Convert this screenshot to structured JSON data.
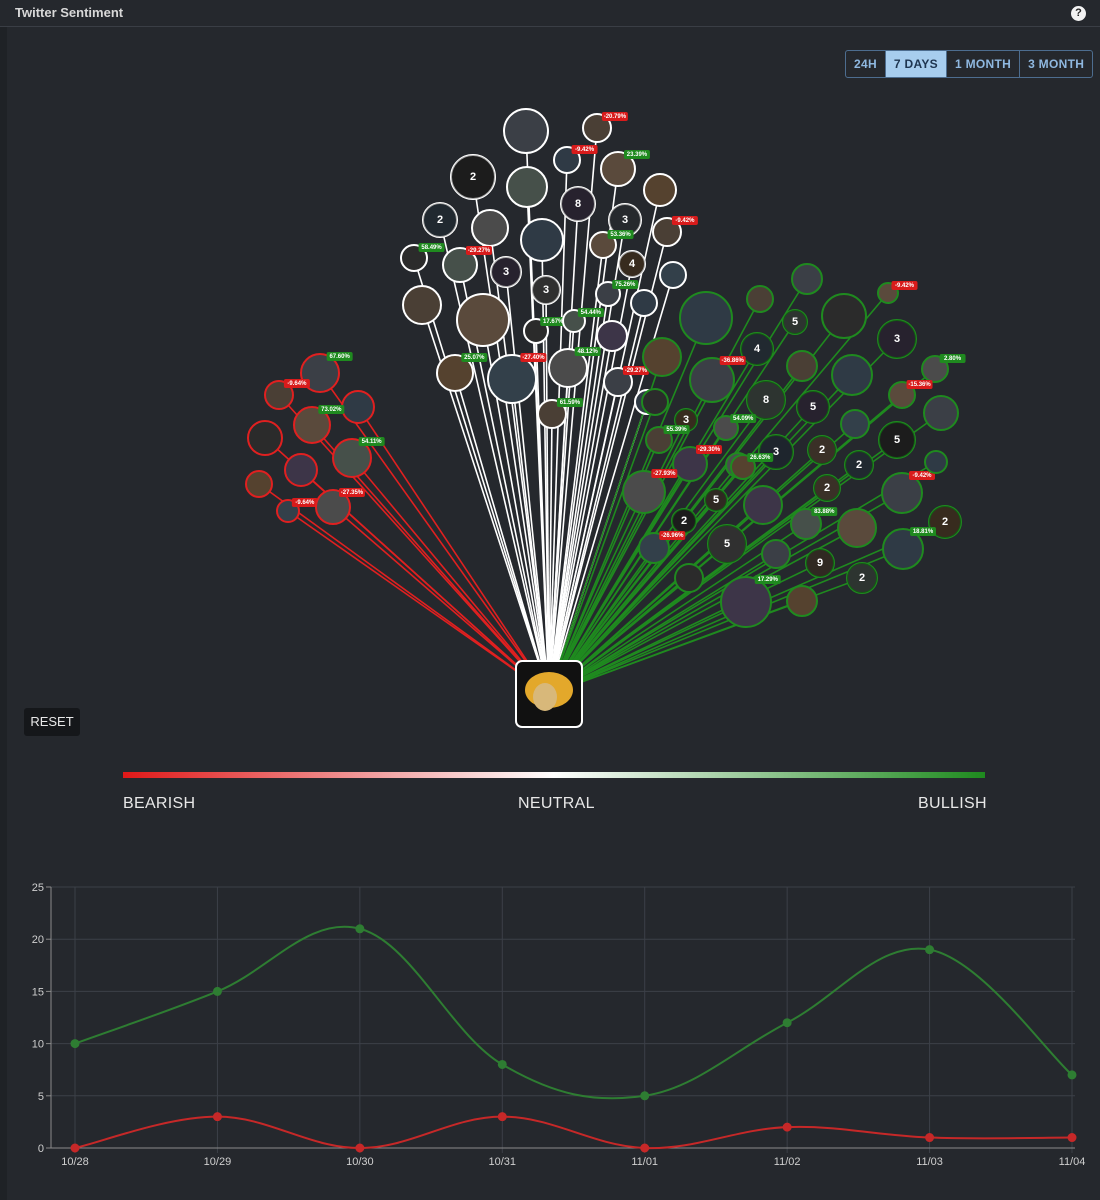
{
  "header": {
    "title": "Twitter Sentiment",
    "help_icon": "?"
  },
  "range_tabs": [
    {
      "label": "24H",
      "active": false
    },
    {
      "label": "7 DAYS",
      "active": true
    },
    {
      "label": "1 MONTH",
      "active": false
    },
    {
      "label": "3 MONTH",
      "active": false
    }
  ],
  "reset_label": "RESET",
  "scale": {
    "bearish": "BEARISH",
    "neutral": "NEUTRAL",
    "bullish": "BULLISH"
  },
  "colors": {
    "bearish": "#e02020",
    "neutral": "#ffffff",
    "bullish": "#1f8a1f",
    "accent": "#a7cdee"
  },
  "network": {
    "center_icon": "user-avatar-icon",
    "bearish_nodes": [
      {
        "badge": "67.60%"
      },
      {
        "badge": "-9.64%"
      },
      {
        "badge": ""
      },
      {
        "badge": "73.02%"
      },
      {
        "badge": ""
      },
      {
        "badge": "54.11%"
      },
      {
        "badge": ""
      },
      {
        "badge": ""
      },
      {
        "badge": "-9.64%"
      },
      {
        "badge": "-27.35%"
      }
    ],
    "neutral_nodes": [
      {
        "count": "",
        "badge": ""
      },
      {
        "count": "",
        "badge": "-20.79%"
      },
      {
        "count": "",
        "badge": "-9.42%"
      },
      {
        "count": "",
        "badge": "23.39%"
      },
      {
        "count": "2",
        "badge": ""
      },
      {
        "count": "",
        "badge": ""
      },
      {
        "count": "8",
        "badge": ""
      },
      {
        "count": "",
        "badge": ""
      },
      {
        "count": "2",
        "badge": ""
      },
      {
        "count": "",
        "badge": ""
      },
      {
        "count": "3",
        "badge": ""
      },
      {
        "count": "",
        "badge": "-9.42%"
      },
      {
        "count": "",
        "badge": ""
      },
      {
        "count": "",
        "badge": "53.36%"
      },
      {
        "count": "",
        "badge": "58.49%"
      },
      {
        "count": "",
        "badge": "-29.27%"
      },
      {
        "count": "3",
        "badge": ""
      },
      {
        "count": "4",
        "badge": ""
      },
      {
        "count": "",
        "badge": ""
      },
      {
        "count": "3",
        "badge": ""
      },
      {
        "count": "",
        "badge": "75.26%"
      },
      {
        "count": "",
        "badge": ""
      },
      {
        "count": "",
        "badge": ""
      },
      {
        "count": "",
        "badge": ""
      },
      {
        "count": "",
        "badge": "17.67%"
      },
      {
        "count": "",
        "badge": "54.44%"
      },
      {
        "count": "",
        "badge": ""
      },
      {
        "count": "",
        "badge": "25.07%"
      },
      {
        "count": "",
        "badge": "-27.40%"
      },
      {
        "count": "",
        "badge": "48.12%"
      },
      {
        "count": "",
        "badge": "-29.27%"
      },
      {
        "count": "",
        "badge": "61.59%"
      },
      {
        "count": "",
        "badge": ""
      }
    ],
    "bullish_nodes": [
      {
        "count": "",
        "badge": ""
      },
      {
        "count": "",
        "badge": ""
      },
      {
        "count": "",
        "badge": ""
      },
      {
        "count": "",
        "badge": "-9.42%"
      },
      {
        "count": "",
        "badge": ""
      },
      {
        "count": "5",
        "badge": ""
      },
      {
        "count": "3",
        "badge": ""
      },
      {
        "count": "",
        "badge": ""
      },
      {
        "count": "4",
        "badge": ""
      },
      {
        "count": "",
        "badge": "2.80%"
      },
      {
        "count": "",
        "badge": "-36.86%"
      },
      {
        "count": "",
        "badge": ""
      },
      {
        "count": "",
        "badge": ""
      },
      {
        "count": "",
        "badge": "-15.36%"
      },
      {
        "count": "",
        "badge": ""
      },
      {
        "count": "8",
        "badge": ""
      },
      {
        "count": "5",
        "badge": ""
      },
      {
        "count": "3",
        "badge": ""
      },
      {
        "count": "",
        "badge": ""
      },
      {
        "count": "",
        "badge": "54.09%"
      },
      {
        "count": "",
        "badge": ""
      },
      {
        "count": "",
        "badge": "55.39%"
      },
      {
        "count": "3",
        "badge": ""
      },
      {
        "count": "2",
        "badge": ""
      },
      {
        "count": "5",
        "badge": ""
      },
      {
        "count": "",
        "badge": ""
      },
      {
        "count": "",
        "badge": "-29.30%"
      },
      {
        "count": "",
        "badge": "26.63%"
      },
      {
        "count": "2",
        "badge": ""
      },
      {
        "count": "",
        "badge": "-27.93%"
      },
      {
        "count": "",
        "badge": "-9.42%"
      },
      {
        "count": "5",
        "badge": ""
      },
      {
        "count": "",
        "badge": ""
      },
      {
        "count": "2",
        "badge": ""
      },
      {
        "count": "2",
        "badge": ""
      },
      {
        "count": "",
        "badge": "83.88%"
      },
      {
        "count": "",
        "badge": ""
      },
      {
        "count": "2",
        "badge": ""
      },
      {
        "count": "",
        "badge": "-26.96%"
      },
      {
        "count": "5",
        "badge": ""
      },
      {
        "count": "",
        "badge": ""
      },
      {
        "count": "9",
        "badge": ""
      },
      {
        "count": "",
        "badge": "18.81%"
      },
      {
        "count": "",
        "badge": ""
      },
      {
        "count": "",
        "badge": ""
      },
      {
        "count": "2",
        "badge": ""
      },
      {
        "count": "",
        "badge": "17.29%"
      }
    ]
  },
  "chart_data": {
    "type": "line",
    "x": [
      "10/28",
      "10/29",
      "10/30",
      "10/31",
      "11/01",
      "11/02",
      "11/03",
      "11/04"
    ],
    "ylim": [
      0,
      25
    ],
    "yticks": [
      0,
      5,
      10,
      15,
      20,
      25
    ],
    "grid": true,
    "series": [
      {
        "values": [
          10,
          15,
          21,
          8,
          5,
          12,
          19,
          7
        ],
        "color": "#2e7d32"
      },
      {
        "values": [
          0,
          3,
          0,
          3,
          0,
          2,
          1,
          1
        ],
        "color": "#c62828"
      }
    ]
  }
}
